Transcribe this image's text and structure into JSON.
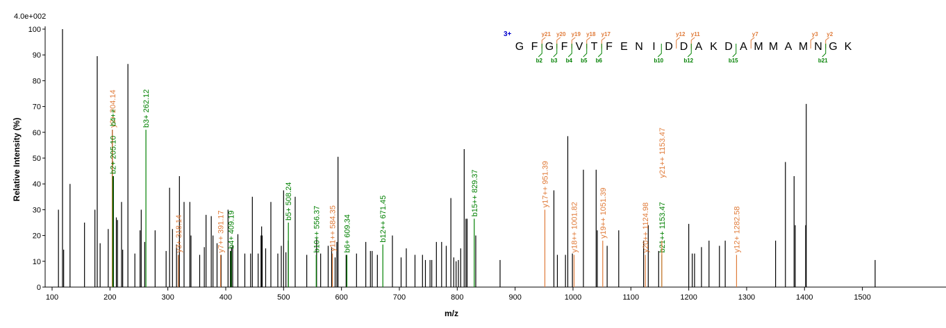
{
  "colors": {
    "y_ion": "#e07b39",
    "b_ion": "#008000",
    "peak": "#000000",
    "charge": "#0000cc"
  },
  "chart_data": {
    "type": "bar",
    "scale_label": "4.0e+002",
    "xlabel": "m/z",
    "ylabel": "Relative   Intensity (%)",
    "xlim": [
      100,
      1570
    ],
    "ylim": [
      0,
      100
    ],
    "x_ticks": [
      100,
      200,
      300,
      400,
      500,
      600,
      700,
      800,
      900,
      1000,
      1100,
      1200,
      1300,
      1400,
      1500
    ],
    "y_ticks": [
      0,
      10,
      20,
      30,
      40,
      50,
      60,
      70,
      80,
      90,
      100
    ],
    "peaks": [
      [
        111,
        30
      ],
      [
        118,
        100
      ],
      [
        120,
        14.5
      ],
      [
        131,
        40
      ],
      [
        156,
        25
      ],
      [
        174,
        30
      ],
      [
        178,
        89.5
      ],
      [
        183,
        17
      ],
      [
        197,
        22.5
      ],
      [
        204,
        61
      ],
      [
        206,
        43
      ],
      [
        211,
        27
      ],
      [
        213,
        26
      ],
      [
        220,
        33
      ],
      [
        222,
        14.5
      ],
      [
        231,
        86.5
      ],
      [
        243,
        13
      ],
      [
        252,
        22
      ],
      [
        254,
        30
      ],
      [
        260,
        17.5
      ],
      [
        278,
        22
      ],
      [
        297,
        14
      ],
      [
        303,
        38.5
      ],
      [
        308,
        22.5
      ],
      [
        315,
        16.5
      ],
      [
        318,
        12.5
      ],
      [
        320,
        43
      ],
      [
        328,
        33
      ],
      [
        338,
        33
      ],
      [
        340,
        20
      ],
      [
        355,
        12.5
      ],
      [
        363,
        15.5
      ],
      [
        366,
        28
      ],
      [
        375,
        27.5
      ],
      [
        378,
        20
      ],
      [
        385,
        17
      ],
      [
        392,
        12.5
      ],
      [
        404,
        30
      ],
      [
        408,
        14
      ],
      [
        410,
        15.5
      ],
      [
        412,
        16
      ],
      [
        421,
        20.5
      ],
      [
        433,
        13
      ],
      [
        443,
        13
      ],
      [
        446,
        35
      ],
      [
        456,
        13
      ],
      [
        461,
        20
      ],
      [
        462,
        23.5
      ],
      [
        463,
        20
      ],
      [
        469,
        15
      ],
      [
        478,
        33
      ],
      [
        490,
        13
      ],
      [
        496,
        16
      ],
      [
        500,
        37.5
      ],
      [
        504,
        13.5
      ],
      [
        508,
        18
      ],
      [
        520,
        35
      ],
      [
        540,
        12.5
      ],
      [
        557,
        19
      ],
      [
        564,
        13
      ],
      [
        577,
        16
      ],
      [
        583,
        15.5
      ],
      [
        589,
        11.5
      ],
      [
        592,
        17.5
      ],
      [
        594,
        50.5
      ],
      [
        608,
        12.5
      ],
      [
        626,
        13
      ],
      [
        642,
        17.5
      ],
      [
        650,
        14
      ],
      [
        653,
        14
      ],
      [
        662,
        12.5
      ],
      [
        688,
        20
      ],
      [
        703,
        11.5
      ],
      [
        712,
        15
      ],
      [
        727,
        12.5
      ],
      [
        740,
        12.5
      ],
      [
        745,
        10.5
      ],
      [
        753,
        10.5
      ],
      [
        756,
        10.5
      ],
      [
        764,
        17.5
      ],
      [
        773,
        17.5
      ],
      [
        781,
        16
      ],
      [
        789,
        34.5
      ],
      [
        794,
        11.5
      ],
      [
        798,
        10
      ],
      [
        802,
        10.5
      ],
      [
        806,
        15
      ],
      [
        812,
        53.5
      ],
      [
        815,
        26.5
      ],
      [
        817,
        26.5
      ],
      [
        832,
        20
      ],
      [
        874,
        10.5
      ],
      [
        967,
        37.5
      ],
      [
        973,
        12.5
      ],
      [
        987,
        12.5
      ],
      [
        991,
        58.5
      ],
      [
        999,
        13
      ],
      [
        1018,
        45.5
      ],
      [
        1040,
        45.5
      ],
      [
        1042,
        22
      ],
      [
        1059,
        16
      ],
      [
        1079,
        22
      ],
      [
        1122,
        18
      ],
      [
        1130,
        24
      ],
      [
        1148,
        14
      ],
      [
        1200,
        24.5
      ],
      [
        1206,
        13
      ],
      [
        1210,
        13
      ],
      [
        1222,
        15.5
      ],
      [
        1235,
        18
      ],
      [
        1253,
        16
      ],
      [
        1263,
        18
      ],
      [
        1350,
        18
      ],
      [
        1367,
        48.5
      ],
      [
        1382,
        43
      ],
      [
        1384,
        24
      ],
      [
        1402,
        24
      ],
      [
        1403,
        71
      ],
      [
        1522,
        10.5
      ]
    ],
    "ion_peaks": [
      {
        "mz": 204.14,
        "rel": 61,
        "label": "y2+ 204.14",
        "ion": "y"
      },
      {
        "mz": 205.1,
        "rel": 43,
        "label": "b2+ 205.10",
        "ion": "b"
      },
      {
        "mz": 205.1,
        "rel": 43,
        "label": "b4++",
        "ion": "b"
      },
      {
        "mz": 262.12,
        "rel": 61,
        "label": "b3+ 262.12",
        "ion": "b"
      },
      {
        "mz": 318.14,
        "rel": 12.5,
        "label": "y3+ 318.14",
        "ion": "y"
      },
      {
        "mz": 391.17,
        "rel": 12.5,
        "label": "y7++ 391.17",
        "ion": "y"
      },
      {
        "mz": 409.19,
        "rel": 14,
        "label": "b4+ 409.19",
        "ion": "b"
      },
      {
        "mz": 508.24,
        "rel": 25,
        "label": "b5+ 508.24",
        "ion": "b"
      },
      {
        "mz": 556.37,
        "rel": 12.5,
        "label": "b10++ 556.37",
        "ion": "b"
      },
      {
        "mz": 584.35,
        "rel": 13,
        "label": "y11++ 584.35",
        "ion": "y"
      },
      {
        "mz": 609.34,
        "rel": 12.5,
        "label": "b6+ 609.34",
        "ion": "b"
      },
      {
        "mz": 671.45,
        "rel": 16.5,
        "label": "b12++ 671.45",
        "ion": "b"
      },
      {
        "mz": 829.37,
        "rel": 26.5,
        "label": "b15++ 829.37",
        "ion": "b"
      },
      {
        "mz": 951.39,
        "rel": 30,
        "label": "y17++ 951.39",
        "ion": "y"
      },
      {
        "mz": 1001.82,
        "rel": 12.5,
        "label": "y18++ 1001.82",
        "ion": "y"
      },
      {
        "mz": 1051.39,
        "rel": 18,
        "label": "y19++ 1051.39",
        "ion": "y"
      },
      {
        "mz": 1124.98,
        "rel": 12.5,
        "label": "y20++ 1124.98",
        "ion": "y"
      },
      {
        "mz": 1153.47,
        "rel": 12.5,
        "label": "b21++ 1153.47",
        "ion": "b"
      },
      {
        "mz": 1153.47,
        "rel": 18,
        "label": "y21++ 1153.47",
        "ion": "y"
      },
      {
        "mz": 1282.58,
        "rel": 12.5,
        "label": "y12+ 1282.58",
        "ion": "y"
      }
    ],
    "sequence": {
      "charge": "3+",
      "residues": [
        "G",
        "F",
        "G",
        "F",
        "V",
        "T",
        "F",
        "E",
        "N",
        "I",
        "D",
        "D",
        "A",
        "K",
        "D",
        "A",
        "M",
        "M",
        "A",
        "M",
        "N",
        "G",
        "K"
      ],
      "y_breaks": [
        {
          "after": 2,
          "label": "y21"
        },
        {
          "after": 3,
          "label": "y20"
        },
        {
          "after": 4,
          "label": "y19"
        },
        {
          "after": 5,
          "label": "y18"
        },
        {
          "after": 6,
          "label": "y17"
        },
        {
          "after": 11,
          "label": "y12"
        },
        {
          "after": 12,
          "label": "y11"
        },
        {
          "after": 16,
          "label": "y7"
        },
        {
          "after": 20,
          "label": "y3"
        },
        {
          "after": 21,
          "label": "y2"
        }
      ],
      "b_breaks": [
        {
          "after": 2,
          "label": "b2"
        },
        {
          "after": 3,
          "label": "b3"
        },
        {
          "after": 4,
          "label": "b4"
        },
        {
          "after": 5,
          "label": "b5"
        },
        {
          "after": 6,
          "label": "b6"
        },
        {
          "after": 10,
          "label": "b10"
        },
        {
          "after": 12,
          "label": "b12"
        },
        {
          "after": 15,
          "label": "b15"
        },
        {
          "after": 21,
          "label": "b21"
        }
      ]
    }
  }
}
